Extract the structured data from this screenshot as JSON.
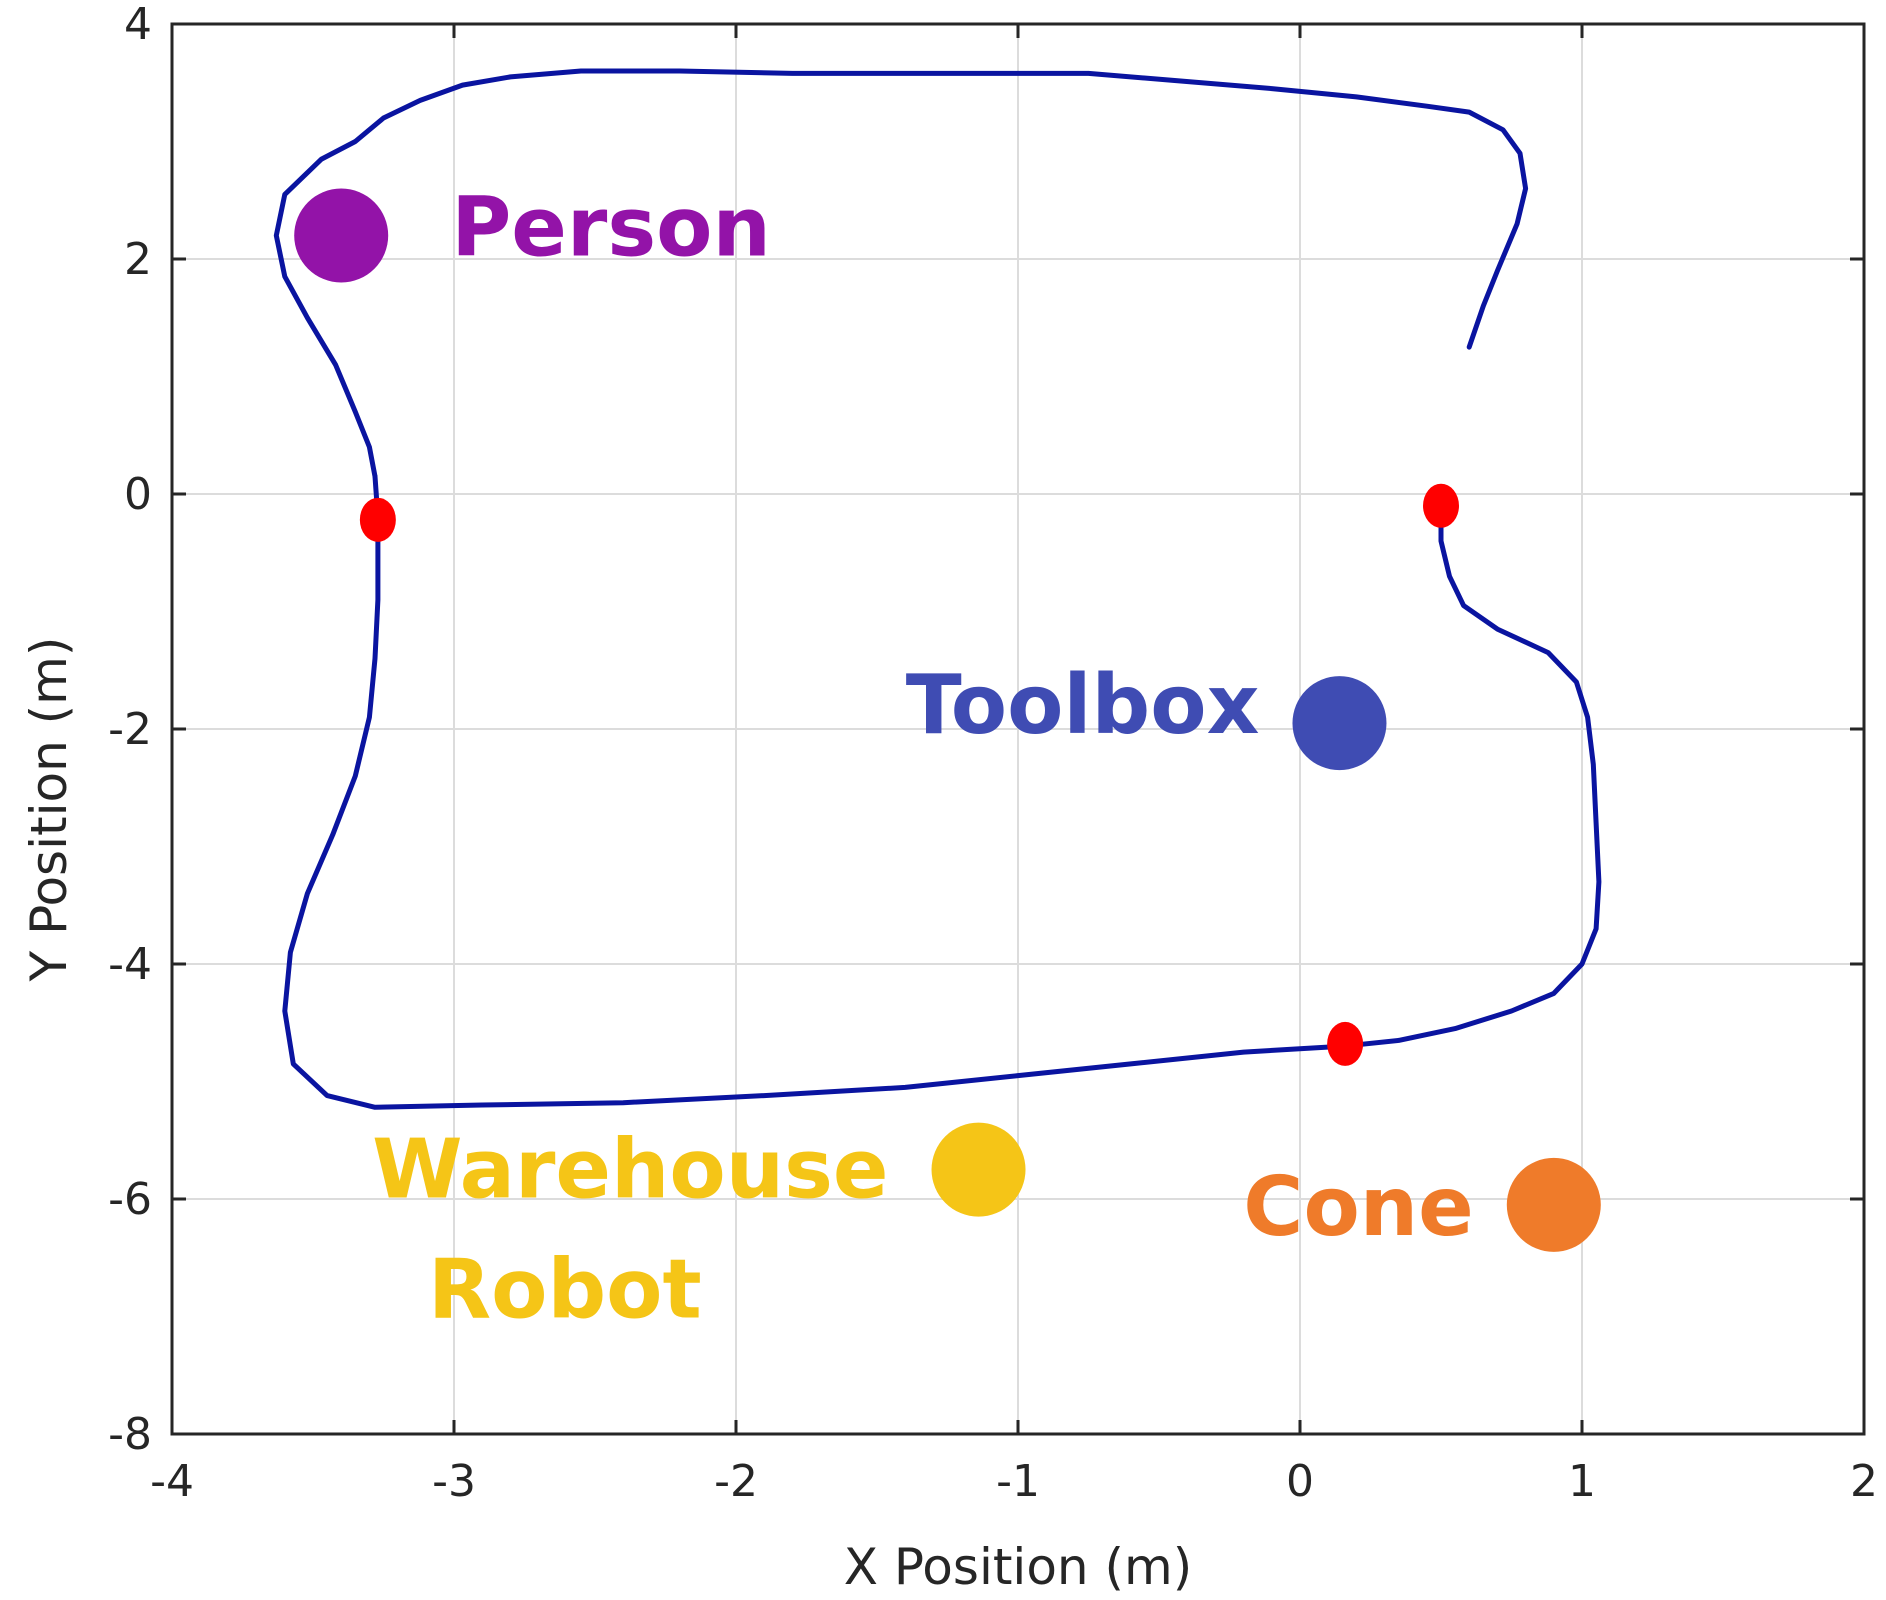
{
  "chart_data": {
    "type": "scatter",
    "title": "",
    "xlabel": "X Position (m)",
    "ylabel": "Y Position (m)",
    "xlim": [
      -4,
      2
    ],
    "ylim": [
      -8,
      4
    ],
    "xticks": [
      -4,
      -3,
      -2,
      -1,
      0,
      1,
      2
    ],
    "yticks": [
      -8,
      -6,
      -4,
      -2,
      0,
      2,
      4
    ],
    "grid": true,
    "trajectory": {
      "color": "#0a14a0",
      "points": [
        [
          -3.28,
          0.15
        ],
        [
          -3.3,
          0.4
        ],
        [
          -3.35,
          0.7
        ],
        [
          -3.42,
          1.1
        ],
        [
          -3.52,
          1.5
        ],
        [
          -3.6,
          1.85
        ],
        [
          -3.63,
          2.2
        ],
        [
          -3.6,
          2.55
        ],
        [
          -3.47,
          2.85
        ],
        [
          -3.35,
          3.0
        ],
        [
          -3.25,
          3.2
        ],
        [
          -3.12,
          3.35
        ],
        [
          -2.97,
          3.48
        ],
        [
          -2.8,
          3.55
        ],
        [
          -2.55,
          3.6
        ],
        [
          -2.2,
          3.6
        ],
        [
          -1.8,
          3.58
        ],
        [
          -1.3,
          3.58
        ],
        [
          -0.75,
          3.58
        ],
        [
          -0.45,
          3.52
        ],
        [
          -0.1,
          3.45
        ],
        [
          0.2,
          3.38
        ],
        [
          0.45,
          3.3
        ],
        [
          0.6,
          3.25
        ],
        [
          0.72,
          3.1
        ],
        [
          0.78,
          2.9
        ],
        [
          0.8,
          2.6
        ],
        [
          0.77,
          2.3
        ],
        [
          0.7,
          1.9
        ],
        [
          0.65,
          1.6
        ],
        [
          0.6,
          1.25
        ]
      ],
      "loop_points": [
        [
          0.5,
          -0.1
        ],
        [
          0.5,
          -0.4
        ],
        [
          0.53,
          -0.7
        ],
        [
          0.58,
          -0.95
        ],
        [
          0.7,
          -1.15
        ],
        [
          0.88,
          -1.35
        ],
        [
          0.98,
          -1.6
        ],
        [
          1.02,
          -1.9
        ],
        [
          1.04,
          -2.3
        ],
        [
          1.05,
          -2.8
        ],
        [
          1.06,
          -3.3
        ],
        [
          1.05,
          -3.7
        ],
        [
          1.0,
          -4.0
        ],
        [
          0.9,
          -4.25
        ],
        [
          0.75,
          -4.4
        ],
        [
          0.55,
          -4.55
        ],
        [
          0.35,
          -4.65
        ],
        [
          0.15,
          -4.7
        ],
        [
          -0.2,
          -4.75
        ],
        [
          -0.6,
          -4.85
        ],
        [
          -1.0,
          -4.95
        ],
        [
          -1.4,
          -5.05
        ],
        [
          -1.9,
          -5.12
        ],
        [
          -2.4,
          -5.18
        ],
        [
          -2.9,
          -5.2
        ],
        [
          -3.28,
          -5.22
        ],
        [
          -3.45,
          -5.12
        ],
        [
          -3.57,
          -4.85
        ],
        [
          -3.6,
          -4.4
        ],
        [
          -3.58,
          -3.9
        ],
        [
          -3.52,
          -3.4
        ],
        [
          -3.43,
          -2.9
        ],
        [
          -3.35,
          -2.4
        ],
        [
          -3.3,
          -1.9
        ],
        [
          -3.28,
          -1.4
        ],
        [
          -3.27,
          -0.9
        ],
        [
          -3.27,
          -0.5
        ],
        [
          -3.27,
          -0.2
        ],
        [
          -3.28,
          0.15
        ]
      ]
    },
    "red_markers": {
      "color": "#ff0000",
      "points": [
        [
          -3.27,
          -0.22
        ],
        [
          0.5,
          -0.1
        ],
        [
          0.16,
          -4.68
        ]
      ]
    },
    "objects": [
      {
        "label": "Person",
        "x": -3.4,
        "y": 2.2,
        "color": "#9313a8"
      },
      {
        "label": "Toolbox",
        "x": 0.14,
        "y": -1.95,
        "color": "#3f4cb3"
      },
      {
        "label": "Warehouse",
        "label2": "Robot",
        "x": -1.14,
        "y": -5.75,
        "color": "#f5c517"
      },
      {
        "label": "Cone",
        "x": 0.9,
        "y": -6.05,
        "color": "#ef7b2a"
      }
    ]
  }
}
